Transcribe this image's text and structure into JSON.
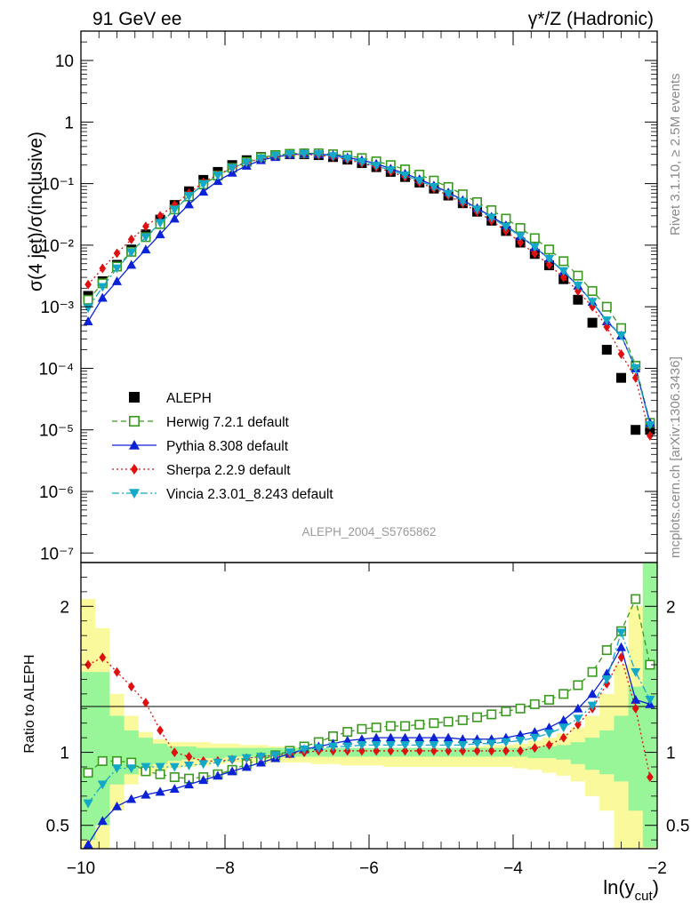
{
  "header": {
    "left": "91 GeV ee",
    "right": "γ*/Z (Hadronic)"
  },
  "side_labels": {
    "rivet": "Rivet 3.1.10, ≥ 2.5M events",
    "mcplots": "mcplots.cern.ch [arXiv:1306.3436]"
  },
  "analysis_label": "ALEPH_2004_S5765862",
  "colors": {
    "aleph": "#000000",
    "herwig": "#3a9a1e",
    "pythia": "#0b22d6",
    "sherpa": "#e01010",
    "vincia": "#14a8c8",
    "band_inner": "#98f598",
    "band_outer": "#fafa9c"
  },
  "chart_data": [
    {
      "type": "scatter",
      "scale": "log",
      "ylabel": "σ(4 jet)/σ(inclusive)",
      "xlim": [
        -10.0,
        -2.0
      ],
      "ylim": [
        7e-08,
        30
      ],
      "yticks": [
        "10⁻⁷",
        "10⁻⁶",
        "10⁻⁵",
        "10⁻⁴",
        "10⁻³",
        "10⁻²",
        "10⁻¹",
        "1",
        "10"
      ],
      "legend_position": "lower-left",
      "x": [
        -9.9,
        -9.7,
        -9.5,
        -9.3,
        -9.1,
        -8.9,
        -8.7,
        -8.5,
        -8.3,
        -8.1,
        -7.9,
        -7.7,
        -7.5,
        -7.3,
        -7.1,
        -6.9,
        -6.7,
        -6.5,
        -6.3,
        -6.1,
        -5.9,
        -5.7,
        -5.5,
        -5.3,
        -5.1,
        -4.9,
        -4.7,
        -4.5,
        -4.3,
        -4.1,
        -3.9,
        -3.7,
        -3.5,
        -3.3,
        -3.1,
        -2.9,
        -2.7,
        -2.5,
        -2.3,
        -2.1
      ],
      "series": [
        {
          "name": "ALEPH",
          "key": "aleph",
          "marker": "square-filled",
          "values": [
            0.0015,
            0.0026,
            0.0048,
            0.0085,
            0.015,
            0.026,
            0.045,
            0.075,
            0.115,
            0.155,
            0.2,
            0.24,
            0.27,
            0.29,
            0.3,
            0.3,
            0.29,
            0.27,
            0.245,
            0.215,
            0.185,
            0.155,
            0.128,
            0.104,
            0.083,
            0.064,
            0.048,
            0.035,
            0.025,
            0.017,
            0.011,
            0.0072,
            0.0047,
            0.0028,
            0.0013,
            0.00055,
            0.0002,
            7e-05,
            1e-05,
            1e-05
          ]
        },
        {
          "name": "Herwig 7.2.1 default",
          "key": "herwig",
          "marker": "square-open",
          "dash": "6,4",
          "values": [
            0.0013,
            0.0024,
            0.0045,
            0.0078,
            0.0135,
            0.022,
            0.038,
            0.062,
            0.097,
            0.135,
            0.18,
            0.225,
            0.265,
            0.29,
            0.305,
            0.31,
            0.31,
            0.3,
            0.285,
            0.26,
            0.23,
            0.2,
            0.17,
            0.14,
            0.112,
            0.088,
            0.067,
            0.05,
            0.037,
            0.027,
            0.019,
            0.013,
            0.0085,
            0.0055,
            0.0032,
            0.0018,
            0.001,
            0.00045,
            0.00011,
            1.3e-05
          ]
        },
        {
          "name": "Pythia 8.308 default",
          "key": "pythia",
          "marker": "triangle-up",
          "dash": "",
          "values": [
            0.00058,
            0.0014,
            0.0026,
            0.0048,
            0.0085,
            0.015,
            0.027,
            0.046,
            0.074,
            0.11,
            0.15,
            0.195,
            0.24,
            0.27,
            0.295,
            0.305,
            0.3,
            0.29,
            0.265,
            0.24,
            0.21,
            0.175,
            0.145,
            0.118,
            0.093,
            0.072,
            0.054,
            0.04,
            0.029,
            0.021,
            0.014,
            0.0093,
            0.006,
            0.0037,
            0.0022,
            0.0012,
            0.00058,
            0.00034,
            0.0001,
            1.3e-05
          ]
        },
        {
          "name": "Sherpa 2.2.9 default",
          "key": "sherpa",
          "marker": "diamond",
          "dash": "2,3",
          "values": [
            0.0023,
            0.0042,
            0.0074,
            0.0124,
            0.0202,
            0.03,
            0.045,
            0.07,
            0.105,
            0.14,
            0.18,
            0.22,
            0.255,
            0.28,
            0.295,
            0.3,
            0.29,
            0.27,
            0.245,
            0.215,
            0.185,
            0.155,
            0.128,
            0.104,
            0.083,
            0.064,
            0.048,
            0.035,
            0.025,
            0.017,
            0.011,
            0.0073,
            0.0048,
            0.003,
            0.0018,
            0.001,
            0.00047,
            0.00017,
            7e-05,
            8e-06
          ]
        },
        {
          "name": "Vincia 2.3.01_8.243 default",
          "key": "vincia",
          "marker": "triangle-down",
          "dash": "8,3,2,3",
          "values": [
            0.00095,
            0.0021,
            0.0042,
            0.0076,
            0.0135,
            0.023,
            0.038,
            0.063,
            0.098,
            0.135,
            0.18,
            0.22,
            0.255,
            0.285,
            0.3,
            0.305,
            0.3,
            0.28,
            0.255,
            0.225,
            0.195,
            0.165,
            0.136,
            0.111,
            0.088,
            0.068,
            0.051,
            0.038,
            0.028,
            0.02,
            0.014,
            0.0093,
            0.006,
            0.0038,
            0.0022,
            0.0012,
            0.0006,
            0.00034,
            0.0001,
            1.2e-05
          ]
        }
      ]
    },
    {
      "type": "line",
      "ylabel": "Ratio to ALEPH",
      "xlabel": "ln(y",
      "xlabel_sub": "cut",
      "xlabel_close": ")",
      "xlim": [
        -10.0,
        -2.0
      ],
      "ylim": [
        0.34,
        2.3
      ],
      "yticks": [
        0.5,
        1,
        2
      ],
      "xticks": [
        -10,
        -8,
        -6,
        -4,
        -2
      ],
      "x": [
        -9.9,
        -9.7,
        -9.5,
        -9.3,
        -9.1,
        -8.9,
        -8.7,
        -8.5,
        -8.3,
        -8.1,
        -7.9,
        -7.7,
        -7.5,
        -7.3,
        -7.1,
        -6.9,
        -6.7,
        -6.5,
        -6.3,
        -6.1,
        -5.9,
        -5.7,
        -5.5,
        -5.3,
        -5.1,
        -4.9,
        -4.7,
        -4.5,
        -4.3,
        -4.1,
        -3.9,
        -3.7,
        -3.5,
        -3.3,
        -3.1,
        -2.9,
        -2.7,
        -2.5,
        -2.3,
        -2.1
      ],
      "band_inner": [
        0.4,
        0.5,
        0.78,
        0.85,
        0.9,
        0.92,
        0.94,
        0.95,
        0.96,
        0.96,
        0.97,
        0.97,
        0.97,
        0.97,
        0.97,
        0.97,
        0.97,
        0.97,
        0.97,
        0.97,
        0.97,
        0.97,
        0.97,
        0.97,
        0.97,
        0.97,
        0.97,
        0.97,
        0.97,
        0.97,
        0.97,
        0.96,
        0.96,
        0.95,
        0.92,
        0.88,
        0.85,
        0.8,
        0.6,
        0.35
      ],
      "band_inner_hi": [
        1.55,
        1.55,
        1.25,
        1.15,
        1.1,
        1.06,
        1.04,
        1.04,
        1.03,
        1.03,
        1.03,
        1.03,
        1.03,
        1.03,
        1.03,
        1.03,
        1.03,
        1.03,
        1.03,
        1.03,
        1.03,
        1.03,
        1.03,
        1.03,
        1.03,
        1.03,
        1.03,
        1.03,
        1.03,
        1.03,
        1.03,
        1.04,
        1.04,
        1.05,
        1.07,
        1.1,
        1.15,
        1.25,
        1.45,
        2.3
      ],
      "band_outer_lo": [
        0.34,
        0.34,
        0.6,
        0.78,
        0.84,
        0.87,
        0.89,
        0.9,
        0.91,
        0.92,
        0.93,
        0.93,
        0.93,
        0.93,
        0.93,
        0.93,
        0.92,
        0.92,
        0.91,
        0.91,
        0.91,
        0.9,
        0.9,
        0.9,
        0.9,
        0.9,
        0.9,
        0.9,
        0.9,
        0.9,
        0.89,
        0.88,
        0.86,
        0.84,
        0.8,
        0.7,
        0.6,
        0.34,
        0.34,
        0.34
      ],
      "band_outer_hi": [
        2.05,
        1.85,
        1.4,
        1.25,
        1.14,
        1.09,
        1.07,
        1.07,
        1.07,
        1.06,
        1.06,
        1.05,
        1.05,
        1.04,
        1.04,
        1.03,
        1.03,
        1.03,
        1.03,
        1.03,
        1.03,
        1.03,
        1.03,
        1.03,
        1.03,
        1.03,
        1.03,
        1.04,
        1.05,
        1.05,
        1.06,
        1.08,
        1.1,
        1.13,
        1.17,
        1.25,
        1.4,
        1.6,
        2.0,
        2.3
      ],
      "series": [
        {
          "name": "Herwig 7.2.1 default",
          "key": "herwig",
          "marker": "square-open",
          "dash": "6,4",
          "values": [
            0.86,
            0.94,
            0.94,
            0.93,
            0.87,
            0.85,
            0.83,
            0.82,
            0.83,
            0.85,
            0.88,
            0.92,
            0.95,
            0.98,
            1.01,
            1.04,
            1.07,
            1.11,
            1.14,
            1.16,
            1.17,
            1.18,
            1.18,
            1.19,
            1.2,
            1.21,
            1.22,
            1.24,
            1.26,
            1.28,
            1.3,
            1.33,
            1.36,
            1.4,
            1.46,
            1.55,
            1.7,
            1.83,
            2.05,
            1.6
          ]
        },
        {
          "name": "Pythia 8.308 default",
          "key": "pythia",
          "marker": "triangle-up",
          "dash": "",
          "values": [
            0.37,
            0.53,
            0.63,
            0.68,
            0.71,
            0.73,
            0.75,
            0.78,
            0.81,
            0.84,
            0.87,
            0.9,
            0.93,
            0.96,
            0.99,
            1.02,
            1.04,
            1.06,
            1.08,
            1.09,
            1.1,
            1.1,
            1.1,
            1.1,
            1.1,
            1.1,
            1.09,
            1.09,
            1.09,
            1.1,
            1.12,
            1.14,
            1.17,
            1.22,
            1.3,
            1.4,
            1.54,
            1.72,
            1.36,
            1.33
          ]
        },
        {
          "name": "Sherpa 2.2.9 default",
          "key": "sherpa",
          "marker": "diamond",
          "dash": "2,3",
          "values": [
            1.6,
            1.65,
            1.55,
            1.45,
            1.34,
            1.15,
            1.0,
            0.97,
            0.94,
            0.94,
            0.95,
            0.96,
            0.97,
            0.98,
            0.99,
            1.0,
            1.01,
            1.01,
            1.01,
            1.01,
            1.01,
            1.01,
            1.01,
            1.01,
            1.01,
            1.01,
            1.01,
            1.01,
            1.01,
            1.01,
            1.01,
            1.03,
            1.05,
            1.1,
            1.19,
            1.3,
            1.47,
            1.65,
            1.3,
            0.83
          ]
        },
        {
          "name": "Vincia 2.3.01_8.243 default",
          "key": "vincia",
          "marker": "triangle-down",
          "dash": "8,3,2,3",
          "values": [
            0.65,
            0.78,
            0.89,
            0.89,
            0.9,
            0.9,
            0.9,
            0.91,
            0.92,
            0.93,
            0.95,
            0.96,
            0.97,
            0.98,
            1.0,
            1.02,
            1.03,
            1.04,
            1.04,
            1.05,
            1.05,
            1.05,
            1.05,
            1.05,
            1.05,
            1.05,
            1.05,
            1.06,
            1.06,
            1.07,
            1.08,
            1.1,
            1.13,
            1.17,
            1.23,
            1.32,
            1.5,
            1.82,
            1.55,
            1.36
          ]
        }
      ]
    }
  ]
}
